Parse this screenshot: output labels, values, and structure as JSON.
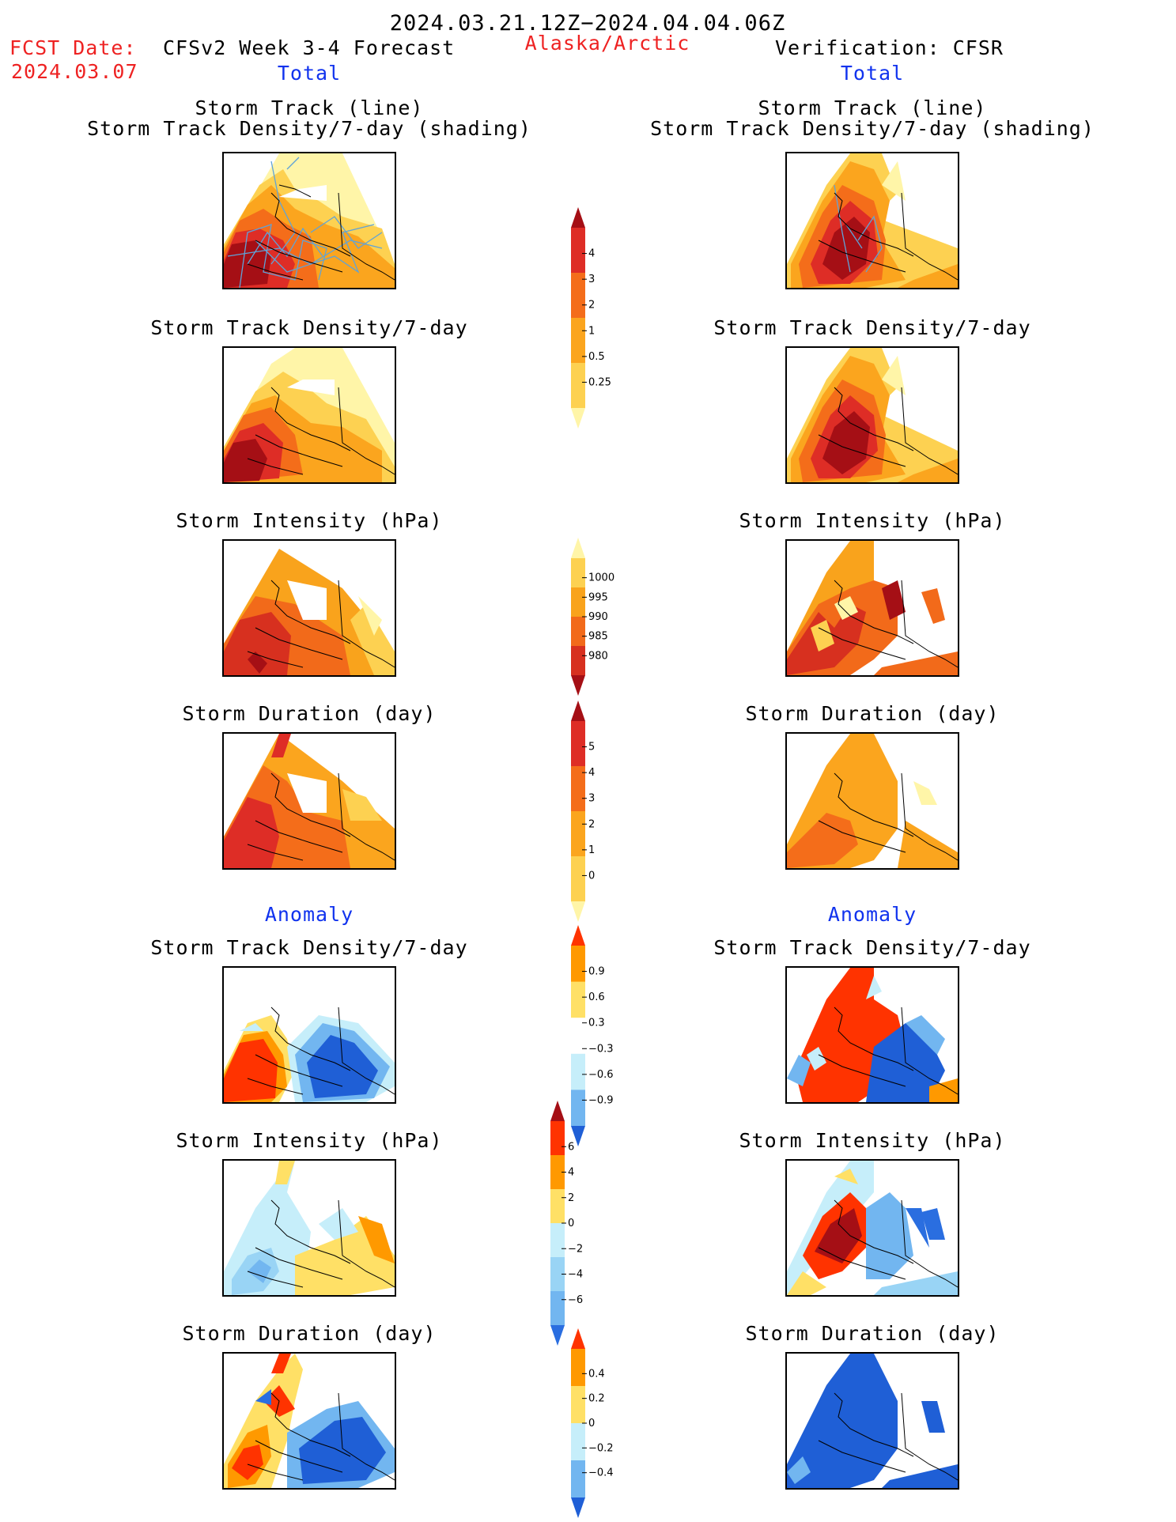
{
  "header": {
    "period": "2024.03.21.12Z−2024.04.04.06Z",
    "fcst_label": "FCST Date:",
    "fcst_date": "2024.03.07",
    "forecast_title": "CFSv2 Week 3-4 Forecast",
    "region": "Alaska/Arctic",
    "verification": "Verification: CFSR"
  },
  "sections": {
    "total_left": "Total",
    "total_right": "Total",
    "anomaly_left": "Anomaly",
    "anomaly_right": "Anomaly"
  },
  "panel_titles": {
    "track_line": "Storm Track (line)",
    "track_shading": "Storm Track Density/7-day (shading)",
    "density": "Storm Track Density/7-day",
    "intensity": "Storm Intensity (hPa)",
    "duration": "Storm Duration (day)"
  },
  "colorbars": {
    "density": {
      "ticks": [
        "4",
        "3",
        "2",
        "1",
        "0.5",
        "0.25"
      ],
      "colors": [
        "#a50f15",
        "#de2d26",
        "#f46d1a",
        "#fba51e",
        "#fdd151",
        "#fff5a8"
      ]
    },
    "intensity": {
      "ticks": [
        "1000",
        "995",
        "990",
        "985",
        "980"
      ],
      "colors": [
        "#fff5a8",
        "#fdd151",
        "#f9a31c",
        "#f26a1a",
        "#d7301f",
        "#a50f15"
      ]
    },
    "duration": {
      "ticks": [
        "5",
        "4",
        "3",
        "2",
        "1",
        "0"
      ],
      "colors": [
        "#a50f15",
        "#de2d26",
        "#f46d1a",
        "#fba51e",
        "#fdd151",
        "#fff5a8"
      ]
    },
    "anom_density": {
      "ticks": [
        "0.9",
        "0.6",
        "0.3",
        "−0.3",
        "−0.6",
        "−0.9"
      ],
      "colors": [
        "#ff3300",
        "#ff9900",
        "#ffe066",
        "#ffffff",
        "#c6eefa",
        "#72b6f0",
        "#1f5fd6"
      ]
    },
    "anom_intensity": {
      "ticks": [
        "6",
        "4",
        "2",
        "0",
        "−2",
        "−4",
        "−6"
      ],
      "colors": [
        "#a50f15",
        "#ff3300",
        "#ff9900",
        "#ffe066",
        "#c6eefa",
        "#99d4f5",
        "#72b6f0",
        "#2a6ee0"
      ]
    },
    "anom_duration": {
      "ticks": [
        "0.4",
        "0.2",
        "0",
        "−0.2",
        "−0.4"
      ],
      "colors": [
        "#ff3300",
        "#ff9900",
        "#ffe066",
        "#c6eefa",
        "#72b6f0",
        "#1f5fd6"
      ]
    }
  }
}
